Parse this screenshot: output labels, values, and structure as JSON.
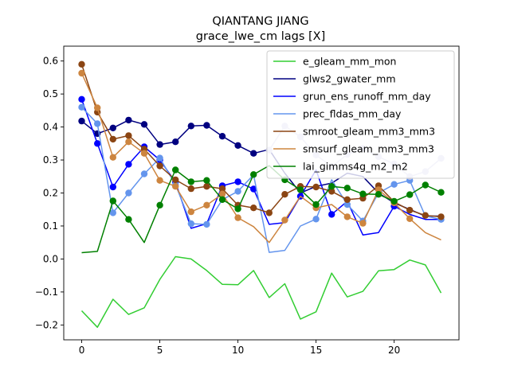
{
  "chart_data": {
    "type": "line",
    "title": "QIANTANG JIANG",
    "subtitle": "grace_lwe_cm lags [X]",
    "xlabel": "",
    "ylabel": "",
    "xlim": [
      -1.15,
      24.15
    ],
    "ylim": [
      -0.245,
      0.645
    ],
    "xticks": [
      0,
      5,
      10,
      15,
      20
    ],
    "yticks": [
      -0.2,
      -0.1,
      0.0,
      0.1,
      0.2,
      0.3,
      0.4,
      0.5,
      0.6
    ],
    "ytick_labels": [
      "−0.2",
      "−0.1",
      "0.0",
      "0.1",
      "0.2",
      "0.3",
      "0.4",
      "0.5",
      "0.6"
    ],
    "grid": false,
    "legend_position": "upper right",
    "x": [
      0,
      1,
      2,
      3,
      4,
      5,
      6,
      7,
      8,
      9,
      10,
      11,
      12,
      13,
      14,
      15,
      16,
      17,
      18,
      19,
      20,
      21,
      22,
      23
    ],
    "series": [
      {
        "name": "e_gleam_mm_mon",
        "color": "#32cd32",
        "values": [
          -0.157,
          -0.207,
          -0.122,
          -0.168,
          -0.148,
          -0.062,
          0.007,
          0.0,
          -0.035,
          -0.077,
          -0.078,
          -0.035,
          -0.117,
          -0.075,
          -0.182,
          -0.16,
          -0.043,
          -0.115,
          -0.098,
          -0.036,
          -0.032,
          -0.003,
          -0.018,
          -0.103
        ],
        "markers": []
      },
      {
        "name": "glws2_gwater_mm",
        "color": "#000080",
        "values": [
          0.418,
          0.38,
          0.397,
          0.421,
          0.408,
          0.347,
          0.355,
          0.403,
          0.405,
          0.372,
          0.344,
          0.32,
          0.332,
          0.26,
          0.2,
          0.22,
          0.23,
          0.26,
          0.25,
          0.2,
          0.17,
          0.15,
          0.13,
          0.13
        ],
        "markers": [
          0,
          1,
          2,
          3,
          4,
          5,
          6,
          7,
          8,
          9,
          10,
          11
        ]
      },
      {
        "name": "grun_ens_runoff_mm_day",
        "color": "#0000ff",
        "values": [
          0.484,
          0.35,
          0.218,
          0.287,
          0.34,
          0.3,
          0.233,
          0.093,
          0.107,
          0.222,
          0.234,
          0.212,
          0.105,
          0.11,
          0.19,
          0.27,
          0.135,
          0.175,
          0.073,
          0.08,
          0.16,
          0.135,
          0.12,
          0.12
        ],
        "markers": [
          0,
          1,
          2,
          3,
          4,
          5,
          6,
          9,
          10,
          11,
          14,
          16,
          20
        ]
      },
      {
        "name": "prec_fldas_mm_day",
        "color": "#6495ed",
        "values": [
          0.46,
          0.41,
          0.14,
          0.2,
          0.258,
          0.306,
          0.225,
          0.107,
          0.105,
          0.18,
          0.205,
          0.255,
          0.02,
          0.026,
          0.1,
          0.121,
          0.24,
          0.165,
          0.115,
          0.2,
          0.226,
          0.238,
          0.13,
          0.12
        ],
        "markers": [
          0,
          1,
          2,
          3,
          4,
          5,
          6,
          7,
          8,
          10,
          15,
          17,
          18,
          20,
          21,
          23
        ]
      },
      {
        "name": "smroot_gleam_mm3_mm3",
        "color": "#8b4513",
        "values": [
          0.59,
          0.445,
          0.363,
          0.374,
          0.333,
          0.282,
          0.24,
          0.213,
          0.22,
          0.213,
          0.163,
          0.155,
          0.14,
          0.196,
          0.22,
          0.218,
          0.205,
          0.18,
          0.184,
          0.222,
          0.173,
          0.148,
          0.132,
          0.128
        ],
        "markers": [
          0,
          1,
          2,
          3,
          4,
          5,
          6,
          7,
          8,
          9,
          10,
          11,
          12,
          13,
          14,
          15,
          16,
          17,
          18,
          19,
          20,
          21,
          22,
          23
        ]
      },
      {
        "name": "smsurf_gleam_mm3_mm3",
        "color": "#cd853f",
        "values": [
          0.563,
          0.458,
          0.308,
          0.355,
          0.32,
          0.238,
          0.22,
          0.143,
          0.163,
          0.197,
          0.125,
          0.098,
          0.05,
          0.118,
          0.19,
          0.155,
          0.165,
          0.128,
          0.108,
          0.21,
          0.17,
          0.122,
          0.08,
          0.058
        ],
        "markers": [
          0,
          1,
          2,
          3,
          4,
          5,
          6,
          7,
          8,
          9,
          10,
          13,
          15,
          17,
          18,
          19,
          20,
          21
        ]
      },
      {
        "name": "lai_gimms4g_m2_m2",
        "color": "#008000",
        "values": [
          0.019,
          0.023,
          0.176,
          0.12,
          0.05,
          0.163,
          0.27,
          0.234,
          0.238,
          0.18,
          0.152,
          0.256,
          0.283,
          0.24,
          0.21,
          0.165,
          0.22,
          0.215,
          0.197,
          0.196,
          0.175,
          0.195,
          0.224,
          0.202
        ],
        "markers": [
          2,
          3,
          5,
          6,
          7,
          8,
          9,
          10,
          11,
          13,
          14,
          15,
          16,
          17,
          18,
          19,
          20,
          21,
          22,
          23
        ]
      },
      {
        "name": "",
        "color": "#c8c8e8",
        "values": [
          null,
          null,
          null,
          null,
          null,
          null,
          null,
          null,
          null,
          null,
          null,
          null,
          0.33,
          0.403,
          0.37,
          0.315,
          0.28,
          0.317,
          0.335,
          0.31,
          0.288,
          0.25,
          0.265,
          0.305
        ],
        "markers": [
          12,
          13,
          14,
          15,
          16,
          17,
          18,
          19,
          20,
          21,
          22,
          23
        ]
      }
    ]
  }
}
